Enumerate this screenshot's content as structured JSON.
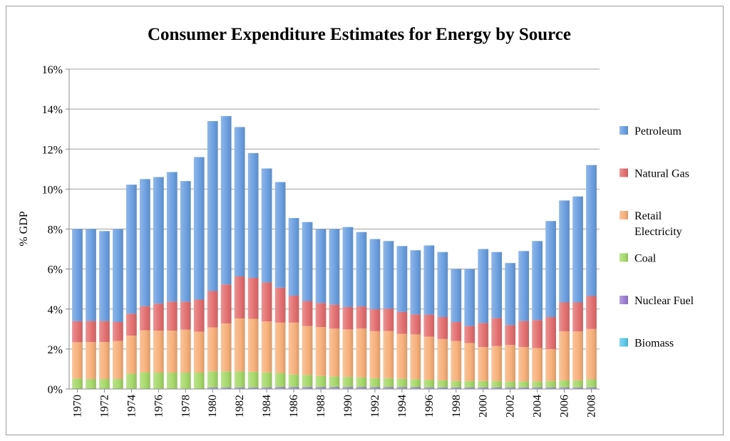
{
  "chart_data": {
    "type": "bar",
    "stacked": true,
    "title": "Consumer Expenditure Estimates for Energy by Source",
    "xlabel": "",
    "ylabel": "% GDP",
    "ylim": [
      0,
      16
    ],
    "yticks": [
      0,
      2,
      4,
      6,
      8,
      10,
      12,
      14,
      16
    ],
    "ytick_labels": [
      "0%",
      "2%",
      "4%",
      "6%",
      "8%",
      "10%",
      "12%",
      "14%",
      "16%"
    ],
    "grid": true,
    "legend_position": "right",
    "categories": [
      "1970",
      "1971",
      "1972",
      "1973",
      "1974",
      "1975",
      "1976",
      "1977",
      "1978",
      "1979",
      "1980",
      "1981",
      "1982",
      "1983",
      "1984",
      "1985",
      "1986",
      "1987",
      "1988",
      "1989",
      "1990",
      "1991",
      "1992",
      "1993",
      "1994",
      "1995",
      "1996",
      "1997",
      "1998",
      "1999",
      "2000",
      "2001",
      "2002",
      "2003",
      "2004",
      "2005",
      "2006",
      "2007",
      "2008"
    ],
    "xtick_labels": [
      "1970",
      "1972",
      "1974",
      "1976",
      "1978",
      "1980",
      "1982",
      "1984",
      "1986",
      "1988",
      "1990",
      "1992",
      "1994",
      "1996",
      "1998",
      "2000",
      "2002",
      "2004",
      "2006",
      "2008"
    ],
    "series": [
      {
        "name": "Biomass",
        "color": "#5bc8e8",
        "values": [
          0.02,
          0.02,
          0.02,
          0.02,
          0.02,
          0.02,
          0.02,
          0.02,
          0.02,
          0.02,
          0.03,
          0.03,
          0.03,
          0.03,
          0.03,
          0.03,
          0.03,
          0.03,
          0.03,
          0.03,
          0.03,
          0.03,
          0.03,
          0.03,
          0.03,
          0.03,
          0.03,
          0.03,
          0.03,
          0.03,
          0.03,
          0.03,
          0.03,
          0.03,
          0.03,
          0.03,
          0.03,
          0.03,
          0.03
        ]
      },
      {
        "name": "Nuclear Fuel",
        "color": "#9b7fd0",
        "values": [
          0.0,
          0.0,
          0.0,
          0.0,
          0.0,
          0.0,
          0.0,
          0.0,
          0.0,
          0.0,
          0.05,
          0.05,
          0.05,
          0.05,
          0.05,
          0.07,
          0.07,
          0.07,
          0.07,
          0.07,
          0.07,
          0.07,
          0.06,
          0.06,
          0.06,
          0.06,
          0.05,
          0.05,
          0.05,
          0.05,
          0.05,
          0.05,
          0.05,
          0.05,
          0.05,
          0.05,
          0.05,
          0.05,
          0.05
        ]
      },
      {
        "name": "Coal",
        "color": "#a6d86a",
        "values": [
          0.5,
          0.48,
          0.48,
          0.48,
          0.75,
          0.82,
          0.8,
          0.8,
          0.8,
          0.8,
          0.8,
          0.8,
          0.8,
          0.78,
          0.75,
          0.7,
          0.62,
          0.6,
          0.55,
          0.52,
          0.5,
          0.48,
          0.45,
          0.45,
          0.42,
          0.4,
          0.38,
          0.35,
          0.32,
          0.32,
          0.32,
          0.32,
          0.3,
          0.3,
          0.3,
          0.32,
          0.35,
          0.35,
          0.4
        ]
      },
      {
        "name": "Retail Electricity",
        "color": "#f7b07a",
        "values": [
          1.82,
          1.85,
          1.85,
          1.9,
          1.9,
          2.1,
          2.1,
          2.1,
          2.15,
          2.05,
          2.2,
          2.4,
          2.65,
          2.65,
          2.55,
          2.52,
          2.6,
          2.45,
          2.45,
          2.4,
          2.38,
          2.45,
          2.35,
          2.36,
          2.25,
          2.24,
          2.16,
          2.07,
          2.0,
          1.9,
          1.7,
          1.75,
          1.82,
          1.72,
          1.67,
          1.6,
          2.45,
          2.45,
          2.52
        ]
      },
      {
        "name": "Natural Gas",
        "color": "#e36f70",
        "values": [
          1.05,
          1.05,
          1.05,
          0.95,
          1.1,
          1.2,
          1.35,
          1.45,
          1.4,
          1.6,
          1.82,
          1.95,
          2.1,
          2.05,
          1.95,
          1.75,
          1.35,
          1.25,
          1.2,
          1.2,
          1.12,
          1.1,
          1.1,
          1.12,
          1.1,
          1.0,
          1.1,
          1.1,
          0.95,
          0.85,
          1.2,
          1.4,
          1.0,
          1.3,
          1.4,
          1.6,
          1.45,
          1.45,
          1.65
        ]
      },
      {
        "name": "Petroleum",
        "color": "#6b9fe0",
        "values": [
          4.61,
          4.6,
          4.5,
          4.65,
          6.45,
          6.36,
          6.33,
          6.48,
          6.03,
          7.13,
          8.5,
          8.42,
          7.47,
          6.24,
          5.7,
          5.28,
          3.88,
          3.95,
          3.7,
          3.78,
          4.0,
          3.72,
          3.51,
          3.38,
          3.29,
          3.21,
          3.46,
          3.25,
          2.65,
          2.85,
          3.7,
          3.3,
          3.1,
          3.5,
          3.95,
          4.8,
          5.1,
          5.3,
          6.55
        ]
      }
    ]
  }
}
